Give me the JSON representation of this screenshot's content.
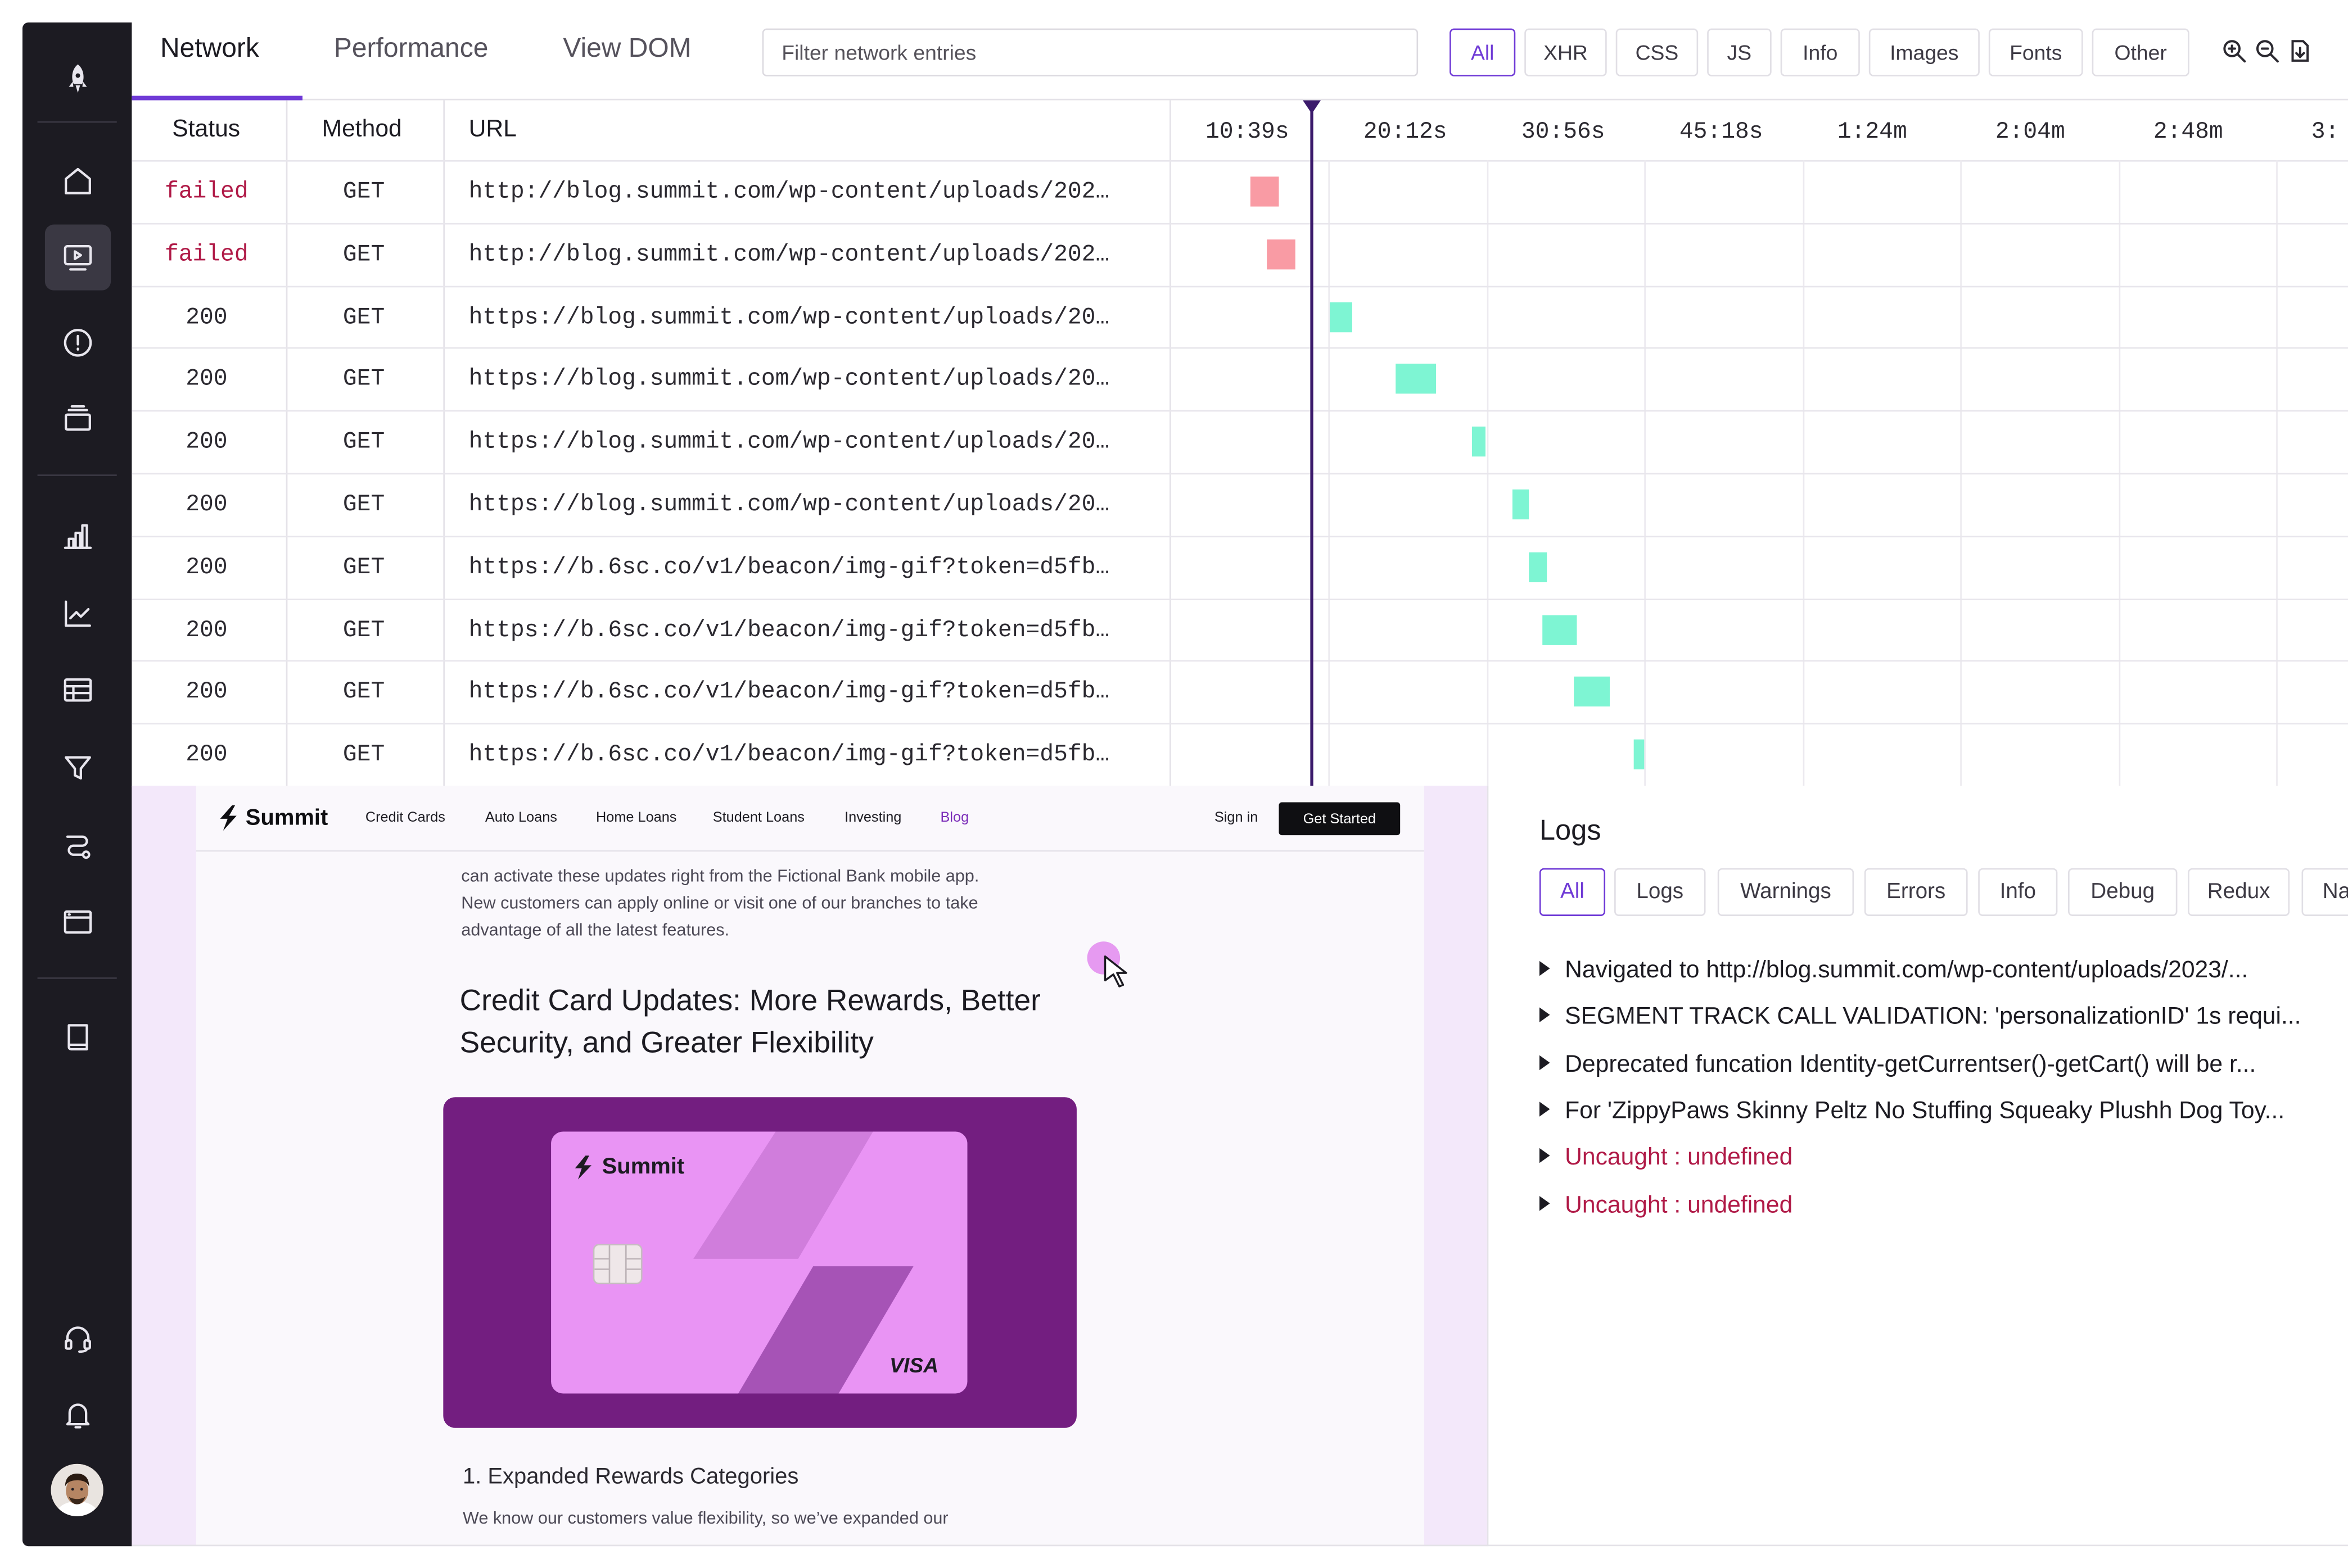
{
  "tabs": [
    {
      "label": "Network"
    },
    {
      "label": "Performance"
    },
    {
      "label": "View DOM"
    }
  ],
  "filter": {
    "placeholder": "Filter network entries"
  },
  "type_filters": [
    "All",
    "XHR",
    "CSS",
    "JS",
    "Info",
    "Images",
    "Fonts",
    "Other"
  ],
  "zoom_icons": [
    "zoom-in-icon",
    "zoom-out-icon",
    "download-icon"
  ],
  "table": {
    "headers": {
      "status": "Status",
      "method": "Method",
      "url": "URL"
    },
    "time_ticks": [
      "10:39s",
      "20:12s",
      "30:56s",
      "45:18s",
      "1:24m",
      "2:04m",
      "2:48m",
      "3:"
    ],
    "rows": [
      {
        "status": "failed",
        "method": "GET",
        "url": "http://blog.summit.com/wp-content/uploads/202…",
        "start": 0.2,
        "duration": 0.18,
        "ok": false
      },
      {
        "status": "failed",
        "method": "GET",
        "url": "http://blog.summit.com/wp-content/uploads/202…",
        "start": 0.3,
        "duration": 0.18,
        "ok": false
      },
      {
        "status": "200",
        "method": "GET",
        "url": "https://blog.summit.com/wp-content/uploads/20…",
        "start": 0.7,
        "duration": 0.14,
        "ok": true
      },
      {
        "status": "200",
        "method": "GET",
        "url": "https://blog.summit.com/wp-content/uploads/20…",
        "start": 1.12,
        "duration": 0.25,
        "ok": true
      },
      {
        "status": "200",
        "method": "GET",
        "url": "https://blog.summit.com/wp-content/uploads/20…",
        "start": 1.6,
        "duration": 0.09,
        "ok": true
      },
      {
        "status": "200",
        "method": "GET",
        "url": "https://blog.summit.com/wp-content/uploads/20…",
        "start": 1.86,
        "duration": 0.1,
        "ok": true
      },
      {
        "status": "200",
        "method": "GET",
        "url": "https://b.6sc.co/v1/beacon/img-gif?token=d5fb…",
        "start": 1.96,
        "duration": 0.12,
        "ok": true
      },
      {
        "status": "200",
        "method": "GET",
        "url": "https://b.6sc.co/v1/beacon/img-gif?token=d5fb…",
        "start": 2.05,
        "duration": 0.22,
        "ok": true
      },
      {
        "status": "200",
        "method": "GET",
        "url": "https://b.6sc.co/v1/beacon/img-gif?token=d5fb…",
        "start": 2.25,
        "duration": 0.22,
        "ok": true
      },
      {
        "status": "200",
        "method": "GET",
        "url": "https://b.6sc.co/v1/beacon/img-gif?token=d5fb…",
        "start": 2.63,
        "duration": 0.06,
        "ok": true
      }
    ],
    "playhead": 0.88,
    "colors": {
      "ok": "#7ef5d3",
      "failed": "#f99ba4",
      "playhead": "#3b1a6b"
    }
  },
  "replay": {
    "brand": "Summit",
    "nav": [
      "Credit Cards",
      "Auto Loans",
      "Home Loans",
      "Student Loans",
      "Investing",
      "Blog"
    ],
    "active_nav": "Blog",
    "signin": "Sign in",
    "cta": "Get Started",
    "intro_text": [
      "can activate these updates right from the Fictional Bank mobile app.",
      "New customers can apply online or visit one of our branches to take",
      "advantage of all the latest features."
    ],
    "headline": "Credit Card Updates: More Rewards, Better Security, and Greater Flexibility",
    "card_brand": "Summit",
    "card_network": "VISA",
    "section_title": "1. Expanded Rewards Categories",
    "section_text": "We know our customers value flexibility, so we’ve expanded our"
  },
  "logs": {
    "title": "Logs",
    "filters": [
      "All",
      "Logs",
      "Warnings",
      "Errors",
      "Info",
      "Debug",
      "Redux",
      "Na"
    ],
    "entries": [
      {
        "text": "Navigated to http://blog.summit.com/wp-content/uploads/2023/...",
        "level": "info"
      },
      {
        "text": "SEGMENT TRACK CALL VALIDATION: 'personalizationID' 1s requi...",
        "level": "info"
      },
      {
        "text": "Deprecated funcation Identity-getCurrentser()-getCart() will be r...",
        "level": "info"
      },
      {
        "text": "For 'ZippyPaws Skinny Peltz No Stuffing Squeaky Plushh Dog Toy...",
        "level": "info"
      },
      {
        "text": "Uncaught : undefined",
        "level": "error"
      },
      {
        "text": "Uncaught : undefined",
        "level": "error"
      }
    ]
  },
  "colors": {
    "accent": "#6f3ad6",
    "sidebar": "#1c1b22",
    "error": "#b01a47",
    "card_bg": "#731e80",
    "card": "#e994f4"
  }
}
